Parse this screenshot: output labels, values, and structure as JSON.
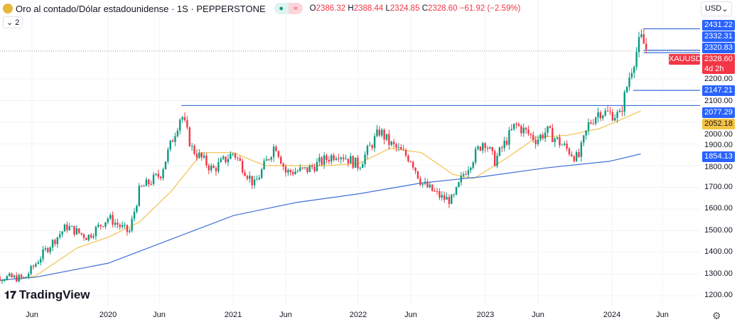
{
  "header": {
    "title": "Oro al contado/Dólar estadounidense · 1S · PEPPERSTONE",
    "open_label": "O",
    "open": "2386.32",
    "high_label": "H",
    "high": "2388.44",
    "low_label": "L",
    "low": "2324.85",
    "close_label": "C",
    "close": "2328.60",
    "change": "−61.92 (−2.59%)",
    "collapse": "2",
    "market_icon": "circle-dot",
    "wave_icon": "≈"
  },
  "currency": "USD",
  "symbol": "XAUUSD",
  "countdown": "4d 2h",
  "logo": "TradingView",
  "colors": {
    "up": "#089981",
    "down": "#f23645",
    "ma_fast": "#f2c14e",
    "ma_slow": "#3d6fd6",
    "level": "#2962ff"
  },
  "chart_data": {
    "type": "candlestick",
    "timeframe": "1W",
    "y_ticks": [
      "2200.00",
      "2100.00",
      "2000.00",
      "1900.00",
      "1800.00",
      "1700.00",
      "1600.00",
      "1500.00",
      "1400.00",
      "1300.00",
      "1200.00"
    ],
    "x_ticks": [
      "Jun",
      "2020",
      "Jun",
      "2021",
      "Jun",
      "2022",
      "Jun",
      "2023",
      "Jun",
      "2024",
      "Jun"
    ],
    "ylim": [
      1180,
      2460
    ],
    "xlim": [
      "2019-01",
      "2024-08"
    ],
    "close_path": [
      [
        "2019-01",
        1290
      ],
      [
        "2019-05",
        1280
      ],
      [
        "2019-07",
        1410
      ],
      [
        "2019-09",
        1520
      ],
      [
        "2019-11",
        1470
      ],
      [
        "2020-01",
        1560
      ],
      [
        "2020-03",
        1490
      ],
      [
        "2020-04",
        1690
      ],
      [
        "2020-06",
        1760
      ],
      [
        "2020-08",
        2040
      ],
      [
        "2020-09",
        1880
      ],
      [
        "2020-11",
        1780
      ],
      [
        "2021-01",
        1860
      ],
      [
        "2021-03",
        1710
      ],
      [
        "2021-05",
        1900
      ],
      [
        "2021-06",
        1770
      ],
      [
        "2021-08",
        1780
      ],
      [
        "2021-11",
        1860
      ],
      [
        "2022-01",
        1800
      ],
      [
        "2022-03",
        1960
      ],
      [
        "2022-04",
        1900
      ],
      [
        "2022-06",
        1830
      ],
      [
        "2022-07",
        1720
      ],
      [
        "2022-09",
        1650
      ],
      [
        "2022-10",
        1640
      ],
      [
        "2022-11",
        1760
      ],
      [
        "2023-01",
        1920
      ],
      [
        "2023-02",
        1820
      ],
      [
        "2023-04",
        1990
      ],
      [
        "2023-06",
        1920
      ],
      [
        "2023-07",
        1960
      ],
      [
        "2023-10",
        1830
      ],
      [
        "2023-11",
        1990
      ],
      [
        "2023-12",
        2050
      ],
      [
        "2024-02",
        2030
      ],
      [
        "2024-03",
        2230
      ],
      [
        "2024-04",
        2390
      ],
      [
        "2024-04-20",
        2328.6
      ]
    ],
    "ma_fast": [
      [
        "2019-01",
        1260
      ],
      [
        "2019-06",
        1290
      ],
      [
        "2019-10",
        1420
      ],
      [
        "2020-01",
        1470
      ],
      [
        "2020-04",
        1540
      ],
      [
        "2020-07",
        1680
      ],
      [
        "2020-10",
        1860
      ],
      [
        "2021-01",
        1860
      ],
      [
        "2021-04",
        1800
      ],
      [
        "2021-07",
        1800
      ],
      [
        "2021-10",
        1800
      ],
      [
        "2022-01",
        1810
      ],
      [
        "2022-04",
        1880
      ],
      [
        "2022-07",
        1860
      ],
      [
        "2022-10",
        1760
      ],
      [
        "2022-12",
        1740
      ],
      [
        "2023-03",
        1830
      ],
      [
        "2023-06",
        1930
      ],
      [
        "2023-09",
        1940
      ],
      [
        "2023-12",
        1970
      ],
      [
        "2024-02",
        2010
      ],
      [
        "2024-04",
        2052.18
      ]
    ],
    "ma_slow": [
      [
        "2019-01",
        1265
      ],
      [
        "2019-06",
        1285
      ],
      [
        "2020-01",
        1350
      ],
      [
        "2020-07",
        1460
      ],
      [
        "2021-01",
        1570
      ],
      [
        "2021-07",
        1630
      ],
      [
        "2022-01",
        1670
      ],
      [
        "2022-07",
        1720
      ],
      [
        "2023-01",
        1750
      ],
      [
        "2023-07",
        1790
      ],
      [
        "2024-01",
        1820
      ],
      [
        "2024-04",
        1854.13
      ]
    ],
    "levels": [
      {
        "value": "2431.22",
        "from": "2024-04"
      },
      {
        "value": "2332.31",
        "from": "2024-04"
      },
      {
        "value": "2320.83",
        "from": "2024-04"
      },
      {
        "value": "2147.21",
        "from": "2024-03"
      },
      {
        "value": "2077.29",
        "from": "2020-08"
      }
    ],
    "ma_labels": {
      "fast": "2052.18",
      "slow": "1854.13"
    }
  }
}
